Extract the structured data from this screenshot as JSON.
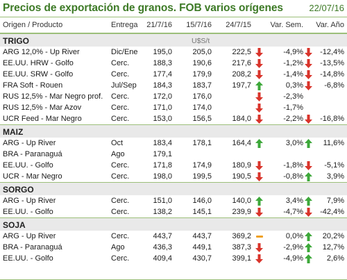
{
  "title": "Precios de exportación de granos. FOB varios orígenes",
  "date": "22/07/16",
  "headers": {
    "product": "Origen / Producto",
    "delivery": "Entrega",
    "d1": "21/7/16",
    "d2": "15/7/16",
    "d3": "24/7/15",
    "var_week": "Var. Sem.",
    "var_year": "Var. Año"
  },
  "unit": "U$S/t",
  "colors": {
    "title": "#3d7a26",
    "up": "#3da83a",
    "down": "#d9342b",
    "flat": "#f0a020",
    "border": "#9cbf7a",
    "section_bg": "#e9e9e9"
  },
  "sections": [
    {
      "name": "TRIGO",
      "show_unit": true,
      "rows": [
        {
          "product": "ARG 12,0% - Up River",
          "delivery": "Dic/Ene",
          "d1": "195,0",
          "d2": "205,0",
          "d3": "222,5",
          "vs": "-4,9%",
          "vs_icon": "down-arrow-icon",
          "va": "-12,4%",
          "va_icon": "down-arrow-icon"
        },
        {
          "product": "EE.UU. HRW - Golfo",
          "delivery": "Cerc.",
          "d1": "188,3",
          "d2": "190,6",
          "d3": "217,6",
          "vs": "-1,2%",
          "vs_icon": "down-arrow-icon",
          "va": "-13,5%",
          "va_icon": "down-arrow-icon"
        },
        {
          "product": "EE.UU. SRW - Golfo",
          "delivery": "Cerc.",
          "d1": "177,4",
          "d2": "179,9",
          "d3": "208,2",
          "vs": "-1,4%",
          "vs_icon": "down-arrow-icon",
          "va": "-14,8%",
          "va_icon": "down-arrow-icon"
        },
        {
          "product": "FRA Soft - Rouen",
          "delivery": "Jul/Sep",
          "d1": "184,3",
          "d2": "183,7",
          "d3": "197,7",
          "vs": "0,3%",
          "vs_icon": "up-arrow-icon",
          "va": "-6,8%",
          "va_icon": "down-arrow-icon"
        },
        {
          "product": "RUS 12,5% - Mar Negro prof.",
          "delivery": "Cerc.",
          "d1": "172,0",
          "d2": "176,0",
          "d3": "",
          "vs": "-2,3%",
          "vs_icon": "down-arrow-icon",
          "va": "",
          "va_icon": ""
        },
        {
          "product": "RUS 12,5% - Mar Azov",
          "delivery": "Cerc.",
          "d1": "171,0",
          "d2": "174,0",
          "d3": "",
          "vs": "-1,7%",
          "vs_icon": "down-arrow-icon",
          "va": "",
          "va_icon": ""
        },
        {
          "product": "UCR Feed - Mar Negro",
          "delivery": "Cerc.",
          "d1": "153,0",
          "d2": "156,5",
          "d3": "184,0",
          "vs": "-2,2%",
          "vs_icon": "down-arrow-icon",
          "va": "-16,8%",
          "va_icon": "down-arrow-icon"
        }
      ]
    },
    {
      "name": "MAIZ",
      "show_unit": false,
      "rows": [
        {
          "product": "ARG - Up River",
          "delivery": "Oct",
          "d1": "183,4",
          "d2": "178,1",
          "d3": "164,4",
          "vs": "3,0%",
          "vs_icon": "up-arrow-icon",
          "va": "11,6%",
          "va_icon": "up-arrow-icon"
        },
        {
          "product": "BRA - Paranaguá",
          "delivery": "Ago",
          "d1": "179,1",
          "d2": "",
          "d3": "",
          "vs": "",
          "vs_icon": "",
          "va": "",
          "va_icon": ""
        },
        {
          "product": "EE.UU. - Golfo",
          "delivery": "Cerc.",
          "d1": "171,8",
          "d2": "174,9",
          "d3": "180,9",
          "vs": "-1,8%",
          "vs_icon": "down-arrow-icon",
          "va": "-5,1%",
          "va_icon": "down-arrow-icon"
        },
        {
          "product": "UCR - Mar Negro",
          "delivery": "Cerc.",
          "d1": "198,0",
          "d2": "199,5",
          "d3": "190,5",
          "vs": "-0,8%",
          "vs_icon": "down-arrow-icon",
          "va": "3,9%",
          "va_icon": "up-arrow-icon"
        }
      ]
    },
    {
      "name": "SORGO",
      "show_unit": false,
      "rows": [
        {
          "product": "ARG - Up River",
          "delivery": "Cerc.",
          "d1": "151,0",
          "d2": "146,0",
          "d3": "140,0",
          "vs": "3,4%",
          "vs_icon": "up-arrow-icon",
          "va": "7,9%",
          "va_icon": "up-arrow-icon"
        },
        {
          "product": "EE.UU. - Golfo",
          "delivery": "Cerc.",
          "d1": "138,2",
          "d2": "145,1",
          "d3": "239,9",
          "vs": "-4,7%",
          "vs_icon": "down-arrow-icon",
          "va": "-42,4%",
          "va_icon": "down-arrow-icon"
        }
      ]
    },
    {
      "name": "SOJA",
      "show_unit": false,
      "rows": [
        {
          "product": "ARG - Up River",
          "delivery": "Cerc.",
          "d1": "443,7",
          "d2": "443,7",
          "d3": "369,2",
          "vs": "0,0%",
          "vs_icon": "flat-dash-icon",
          "va": "20,2%",
          "va_icon": "up-arrow-icon"
        },
        {
          "product": "BRA - Paranaguá",
          "delivery": "Ago",
          "d1": "436,3",
          "d2": "449,1",
          "d3": "387,3",
          "vs": "-2,9%",
          "vs_icon": "down-arrow-icon",
          "va": "12,7%",
          "va_icon": "up-arrow-icon"
        },
        {
          "product": "EE.UU. - Golfo",
          "delivery": "Cerc.",
          "d1": "409,4",
          "d2": "430,7",
          "d3": "399,1",
          "vs": "-4,9%",
          "vs_icon": "down-arrow-icon",
          "va": "2,6%",
          "va_icon": "up-arrow-icon"
        }
      ]
    }
  ]
}
